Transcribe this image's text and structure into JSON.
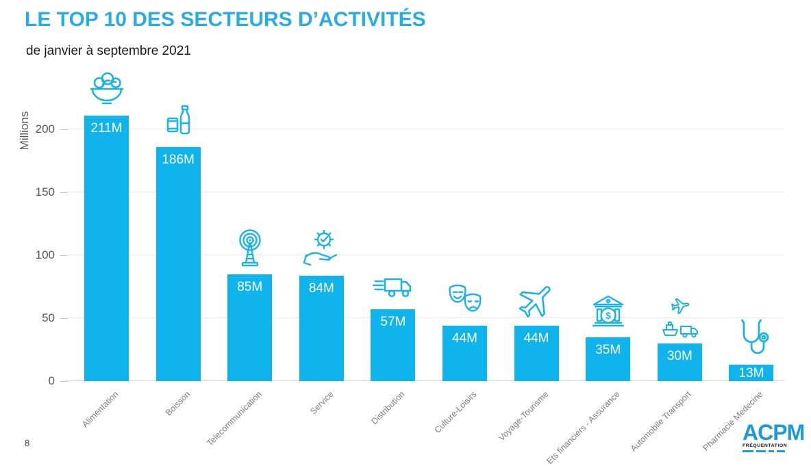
{
  "header": {
    "title": "LE TOP 10 DES SECTEURS D’ACTIVITÉS",
    "subtitle": "de janvier à septembre 2021"
  },
  "page_number": "8",
  "branding": {
    "name": "ACPM",
    "tagline": "FRÉQUENTATION"
  },
  "colors": {
    "accent": "#29abe3",
    "bar": "#0fb4ec",
    "icon": "#1cb2e6",
    "grid": "#e9e9e9",
    "axis_text": "#7d7d7d",
    "tick_text": "#595959",
    "value_label": "#ffffff",
    "logo_blue": "#1b9ad6"
  },
  "chart_data": {
    "type": "bar",
    "title": "LE TOP 10 DES SECTEURS D’ACTIVITÉS",
    "subtitle": "de janvier à septembre 2021",
    "ylabel": "Millions",
    "xlabel": "",
    "yticks": [
      0,
      50,
      100,
      150,
      200
    ],
    "ylim": [
      0,
      216
    ],
    "grid": true,
    "legend": false,
    "categories": [
      "Alimentation",
      "Boisson",
      "Telecommunication",
      "Service",
      "Distribution",
      "Culture-Loisirs",
      "Voyage-Tourisme",
      "Ets financiers - Assurance",
      "Automobile Transport",
      "Pharmacie Medecine"
    ],
    "values": [
      211,
      186,
      85,
      84,
      57,
      44,
      44,
      35,
      30,
      13
    ],
    "value_labels": [
      "211M",
      "186M",
      "85M",
      "84M",
      "57M",
      "44M",
      "44M",
      "35M",
      "30M",
      "13M"
    ],
    "icons": [
      "salad-bowl",
      "bottle-and-can",
      "antenna-tower",
      "hand-holding-gear",
      "delivery-truck",
      "theater-masks",
      "airplane",
      "bank-dollar",
      "plane-ship-truck",
      "stethoscope"
    ]
  }
}
